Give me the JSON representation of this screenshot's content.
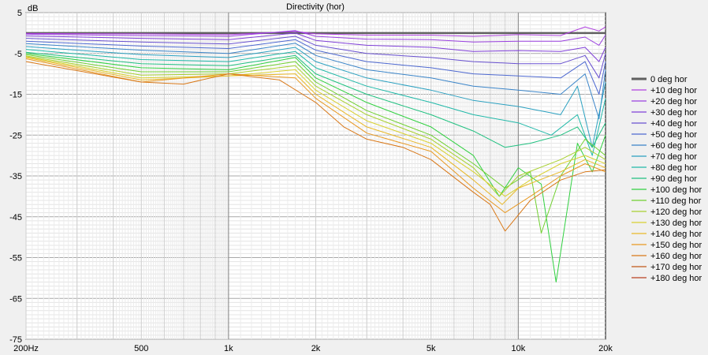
{
  "chart_data": {
    "type": "line",
    "title": "Directivity (hor)",
    "ylabel": "dB",
    "xlabel": "",
    "x_scale": "log",
    "xlim": [
      200,
      20000
    ],
    "ylim": [
      -75,
      5
    ],
    "x_ticks": [
      200,
      500,
      1000,
      2000,
      5000,
      10000,
      20000
    ],
    "x_tick_labels": [
      "200Hz",
      "500",
      "1k",
      "2k",
      "5k",
      "10k",
      "20k"
    ],
    "y_ticks": [
      5,
      -5,
      -15,
      -25,
      -35,
      -45,
      -55,
      -65,
      -75
    ],
    "y_tick_labels": [
      "5",
      "-5",
      "-15",
      "-25",
      "-35",
      "-45",
      "-55",
      "-65",
      "-75"
    ],
    "grid": true,
    "legend_position": "right",
    "series": [
      {
        "name": "0 deg hor",
        "color": "#606060",
        "points": [
          [
            200,
            0
          ],
          [
            500,
            0
          ],
          [
            1000,
            0
          ],
          [
            2000,
            0
          ],
          [
            5000,
            0
          ],
          [
            10000,
            0
          ],
          [
            20000,
            0
          ]
        ]
      },
      {
        "name": "+10 deg hor",
        "color": "#b040e0",
        "points": [
          [
            200,
            -0.1
          ],
          [
            500,
            -0.2
          ],
          [
            1000,
            -0.4
          ],
          [
            1700,
            0.4
          ],
          [
            2000,
            -0.2
          ],
          [
            3000,
            -0.5
          ],
          [
            5000,
            -0.5
          ],
          [
            7000,
            -0.8
          ],
          [
            10000,
            -0.4
          ],
          [
            14000,
            -0.6
          ],
          [
            17000,
            1.5
          ],
          [
            19000,
            0.5
          ],
          [
            20000,
            1.5
          ]
        ]
      },
      {
        "name": "+20 deg hor",
        "color": "#9a40e0",
        "points": [
          [
            200,
            -0.3
          ],
          [
            500,
            -0.6
          ],
          [
            1000,
            -0.8
          ],
          [
            1700,
            0.6
          ],
          [
            2000,
            -0.8
          ],
          [
            3000,
            -1.5
          ],
          [
            5000,
            -1.6
          ],
          [
            7000,
            -2.2
          ],
          [
            10000,
            -2
          ],
          [
            14000,
            -2
          ],
          [
            17000,
            -1
          ],
          [
            19000,
            -3
          ],
          [
            20000,
            -0.5
          ]
        ]
      },
      {
        "name": "+30 deg hor",
        "color": "#8040d8",
        "points": [
          [
            200,
            -0.7
          ],
          [
            500,
            -1.3
          ],
          [
            1000,
            -1.6
          ],
          [
            1700,
            0
          ],
          [
            2000,
            -1.8
          ],
          [
            3000,
            -3
          ],
          [
            5000,
            -3.5
          ],
          [
            7000,
            -4.5
          ],
          [
            10000,
            -4.3
          ],
          [
            14000,
            -4.5
          ],
          [
            17000,
            -3.5
          ],
          [
            19000,
            -7
          ],
          [
            20000,
            -3.5
          ]
        ]
      },
      {
        "name": "+40 deg hor",
        "color": "#6850d0",
        "points": [
          [
            200,
            -1.3
          ],
          [
            500,
            -2.2
          ],
          [
            1000,
            -2.7
          ],
          [
            1700,
            -0.8
          ],
          [
            2000,
            -3
          ],
          [
            3000,
            -5
          ],
          [
            5000,
            -6
          ],
          [
            7000,
            -7
          ],
          [
            10000,
            -7.5
          ],
          [
            14000,
            -7.5
          ],
          [
            17000,
            -5.5
          ],
          [
            19000,
            -11
          ],
          [
            20000,
            -5
          ]
        ]
      },
      {
        "name": "+50 deg hor",
        "color": "#4d68d0",
        "points": [
          [
            200,
            -2
          ],
          [
            500,
            -3.2
          ],
          [
            1000,
            -3.8
          ],
          [
            1700,
            -1.6
          ],
          [
            2000,
            -4.2
          ],
          [
            3000,
            -7
          ],
          [
            5000,
            -8.5
          ],
          [
            7000,
            -10
          ],
          [
            10000,
            -10.5
          ],
          [
            14000,
            -11
          ],
          [
            17000,
            -7
          ],
          [
            19000,
            -15
          ],
          [
            20000,
            -7
          ]
        ]
      },
      {
        "name": "+60 deg hor",
        "color": "#3a84c8",
        "points": [
          [
            200,
            -2.6
          ],
          [
            500,
            -4.2
          ],
          [
            1000,
            -5
          ],
          [
            1700,
            -2.5
          ],
          [
            2000,
            -5.5
          ],
          [
            3000,
            -9
          ],
          [
            5000,
            -11
          ],
          [
            7000,
            -13
          ],
          [
            10000,
            -14
          ],
          [
            14000,
            -15
          ],
          [
            17000,
            -10
          ],
          [
            19000,
            -21
          ],
          [
            20000,
            -9
          ]
        ]
      },
      {
        "name": "+70 deg hor",
        "color": "#2aa0c0",
        "points": [
          [
            200,
            -3.3
          ],
          [
            500,
            -5.3
          ],
          [
            1000,
            -6
          ],
          [
            1700,
            -3.5
          ],
          [
            2000,
            -7
          ],
          [
            3000,
            -11
          ],
          [
            5000,
            -14
          ],
          [
            7000,
            -16.5
          ],
          [
            10000,
            -18
          ],
          [
            14000,
            -20
          ],
          [
            16000,
            -13
          ],
          [
            18000,
            -28
          ],
          [
            20000,
            -12
          ]
        ]
      },
      {
        "name": "+80 deg hor",
        "color": "#20b8a8",
        "points": [
          [
            200,
            -4
          ],
          [
            500,
            -6.5
          ],
          [
            1000,
            -7
          ],
          [
            1700,
            -4.5
          ],
          [
            2000,
            -8.5
          ],
          [
            3000,
            -13
          ],
          [
            5000,
            -17
          ],
          [
            7000,
            -20
          ],
          [
            10000,
            -22
          ],
          [
            13000,
            -25
          ],
          [
            16000,
            -20
          ],
          [
            18000,
            -30
          ],
          [
            20000,
            -16
          ]
        ]
      },
      {
        "name": "+90 deg hor",
        "color": "#20c080",
        "points": [
          [
            200,
            -4.7
          ],
          [
            500,
            -7.5
          ],
          [
            1000,
            -8
          ],
          [
            1700,
            -5.5
          ],
          [
            2000,
            -10
          ],
          [
            3000,
            -15
          ],
          [
            5000,
            -20
          ],
          [
            7000,
            -24
          ],
          [
            9000,
            -28
          ],
          [
            11000,
            -27
          ],
          [
            14000,
            -25
          ],
          [
            16000,
            -23
          ],
          [
            18000,
            -28
          ],
          [
            20000,
            -22
          ]
        ]
      },
      {
        "name": "+100 deg hor",
        "color": "#30d040",
        "points": [
          [
            200,
            -5
          ],
          [
            500,
            -8.5
          ],
          [
            1000,
            -9
          ],
          [
            1700,
            -6
          ],
          [
            2000,
            -11
          ],
          [
            3000,
            -17
          ],
          [
            5000,
            -23
          ],
          [
            7000,
            -30
          ],
          [
            8600,
            -40
          ],
          [
            10000,
            -33
          ],
          [
            12000,
            -37
          ],
          [
            13500,
            -61
          ],
          [
            16000,
            -27
          ],
          [
            18000,
            -34
          ],
          [
            20000,
            -25
          ]
        ]
      },
      {
        "name": "+110 deg hor",
        "color": "#70d030",
        "points": [
          [
            200,
            -5.3
          ],
          [
            500,
            -9.5
          ],
          [
            1000,
            -9.5
          ],
          [
            1700,
            -7
          ],
          [
            2000,
            -12
          ],
          [
            3000,
            -19
          ],
          [
            5000,
            -25
          ],
          [
            7000,
            -32
          ],
          [
            9000,
            -38
          ],
          [
            11000,
            -34
          ],
          [
            12000,
            -49
          ],
          [
            14000,
            -35
          ],
          [
            17000,
            -26
          ],
          [
            20000,
            -30
          ]
        ]
      },
      {
        "name": "+120 deg hor",
        "color": "#a8d030",
        "points": [
          [
            200,
            -5.6
          ],
          [
            500,
            -10.3
          ],
          [
            1000,
            -10
          ],
          [
            1700,
            -8
          ],
          [
            2000,
            -13
          ],
          [
            3000,
            -20
          ],
          [
            5000,
            -26
          ],
          [
            7000,
            -33
          ],
          [
            8600,
            -40
          ],
          [
            10000,
            -35
          ],
          [
            14000,
            -31
          ],
          [
            17000,
            -28
          ],
          [
            20000,
            -31
          ]
        ]
      },
      {
        "name": "+130 deg hor",
        "color": "#d8d030",
        "points": [
          [
            200,
            -5.8
          ],
          [
            500,
            -11
          ],
          [
            1000,
            -10.5
          ],
          [
            1700,
            -9
          ],
          [
            2000,
            -14
          ],
          [
            3000,
            -21.5
          ],
          [
            5000,
            -27
          ],
          [
            7000,
            -34
          ],
          [
            9000,
            -40
          ],
          [
            11000,
            -36
          ],
          [
            14000,
            -32
          ],
          [
            17000,
            -30
          ],
          [
            20000,
            -32
          ]
        ]
      },
      {
        "name": "+140 deg hor",
        "color": "#e8b828",
        "points": [
          [
            200,
            -6
          ],
          [
            500,
            -11.5
          ],
          [
            1000,
            -10.5
          ],
          [
            1700,
            -10
          ],
          [
            2000,
            -15
          ],
          [
            3000,
            -23
          ],
          [
            5000,
            -28
          ],
          [
            7000,
            -36
          ],
          [
            8800,
            -42
          ],
          [
            10000,
            -38
          ],
          [
            14000,
            -34
          ],
          [
            17000,
            -31
          ],
          [
            20000,
            -33
          ]
        ]
      },
      {
        "name": "+150 deg hor",
        "color": "#e89820",
        "points": [
          [
            200,
            -6.3
          ],
          [
            500,
            -12
          ],
          [
            1000,
            -10
          ],
          [
            1700,
            -11
          ],
          [
            2000,
            -16
          ],
          [
            3000,
            -24.5
          ],
          [
            5000,
            -29
          ],
          [
            7000,
            -38
          ],
          [
            9000,
            -44
          ],
          [
            11000,
            -40
          ],
          [
            14000,
            -35
          ],
          [
            17000,
            -32
          ],
          [
            20000,
            -34
          ]
        ]
      },
      {
        "name": "+160 deg hor",
        "color": "#d87818",
        "points": [
          [
            200,
            -7
          ],
          [
            500,
            -12
          ],
          [
            700,
            -12.5
          ],
          [
            1000,
            -10
          ],
          [
            1500,
            -11.5
          ],
          [
            2000,
            -17
          ],
          [
            2500,
            -23
          ],
          [
            3000,
            -26
          ],
          [
            4000,
            -28
          ],
          [
            5000,
            -31
          ],
          [
            7000,
            -39
          ],
          [
            8000,
            -42
          ],
          [
            9000,
            -48.5
          ],
          [
            11000,
            -41
          ],
          [
            14000,
            -36
          ],
          [
            17000,
            -34
          ],
          [
            20000,
            -33.5
          ]
        ]
      },
      {
        "name": "+170 deg hor",
        "color": "#c05818",
        "points": []
      },
      {
        "name": "+180 deg hor",
        "color": "#b84020",
        "points": []
      }
    ]
  }
}
